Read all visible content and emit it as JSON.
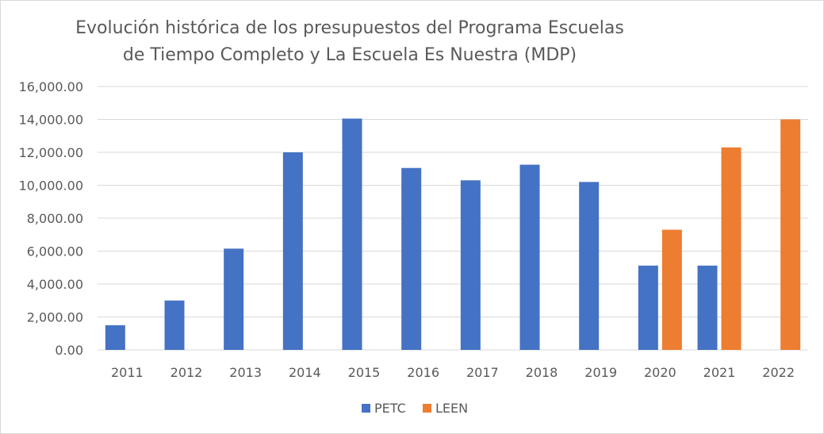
{
  "chart_data": {
    "type": "bar",
    "title": "Evolución histórica de los presupuestos del Programa Escuelas de Tiempo Completo y La Escuela Es Nuestra (MDP)",
    "xlabel": "",
    "ylabel": "",
    "categories": [
      "2011",
      "2012",
      "2013",
      "2014",
      "2015",
      "2016",
      "2017",
      "2018",
      "2019",
      "2020",
      "2021",
      "2022"
    ],
    "series": [
      {
        "name": "PETC",
        "color": "#4472c4",
        "values": [
          1500,
          3000,
          6150,
          12000,
          14050,
          11050,
          10300,
          11250,
          10200,
          5120,
          5120,
          null
        ]
      },
      {
        "name": "LEEN",
        "color": "#ed7d31",
        "values": [
          null,
          null,
          null,
          null,
          null,
          null,
          null,
          null,
          null,
          7300,
          12300,
          14000
        ]
      }
    ],
    "ylim": [
      0,
      16000
    ],
    "yticks": [
      "0.00",
      "2,000.00",
      "4,000.00",
      "6,000.00",
      "8,000.00",
      "10,000.00",
      "12,000.00",
      "14,000.00",
      "16,000.00"
    ],
    "ytick_values": [
      0,
      2000,
      4000,
      6000,
      8000,
      10000,
      12000,
      14000,
      16000
    ],
    "grid": true,
    "legend_position": "bottom"
  }
}
